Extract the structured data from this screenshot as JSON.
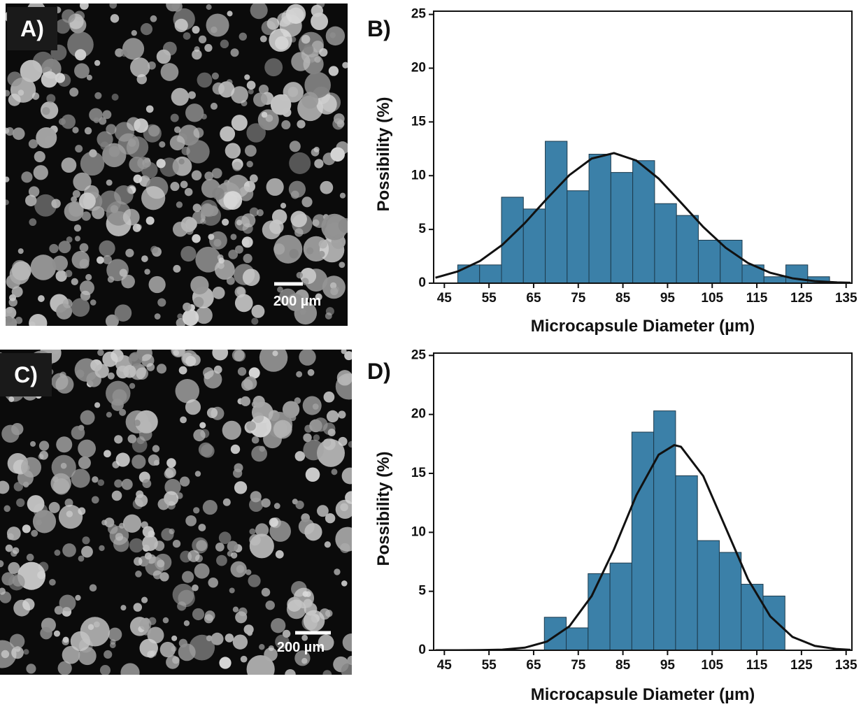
{
  "panels": [
    {
      "label": "A)",
      "scale_bar": "200 µm"
    },
    {
      "label": "C)",
      "scale_bar": "200 µm"
    }
  ],
  "chart_data": [
    {
      "type": "histogram",
      "panel_label": "B)",
      "xlabel": "Microcapsule Diameter (µm)",
      "ylabel": "Possibility (%)",
      "bins": [
        48,
        52.9,
        57.8,
        62.7,
        67.6,
        72.5,
        77.4,
        82.3,
        87.2,
        92.1,
        97,
        101.9,
        106.8,
        111.7,
        116.6,
        121.5,
        126.4,
        131.3
      ],
      "values": [
        1.7,
        1.7,
        8,
        6.9,
        13.2,
        8.6,
        12,
        10.3,
        11.4,
        7.4,
        6.3,
        4,
        4,
        1.7,
        0.6,
        1.7,
        0.6
      ],
      "color": "#3b80a8",
      "fit_curve": {
        "color": "#111111",
        "x": [
          43,
          48,
          53,
          58,
          63,
          68,
          73,
          78,
          83,
          88,
          93,
          98,
          103,
          108,
          113,
          118,
          123,
          128,
          133,
          136
        ],
        "values": [
          0.51,
          1.09,
          2.07,
          3.57,
          5.58,
          7.87,
          10.05,
          11.59,
          12.1,
          11.41,
          9.73,
          7.5,
          5.23,
          3.3,
          1.88,
          0.97,
          0.45,
          0.19,
          0.07,
          0.04
        ]
      },
      "xlim": [
        42.6,
        136.3
      ],
      "ylim": [
        0,
        25.3
      ],
      "xticks": [
        45,
        55,
        65,
        75,
        85,
        95,
        105,
        115,
        125,
        135
      ],
      "yticks": [
        0,
        5,
        10,
        15,
        20,
        25
      ]
    },
    {
      "type": "histogram",
      "panel_label": "D)",
      "xlabel": "Microcapsule Diameter (µm)",
      "ylabel": "Possibility (%)",
      "bins": [
        67.4,
        72.3,
        77.2,
        82.1,
        87,
        91.9,
        96.8,
        101.7,
        106.6,
        111.5,
        116.4,
        121.3
      ],
      "values": [
        2.8,
        1.9,
        6.5,
        7.4,
        18.5,
        20.3,
        14.8,
        9.3,
        8.3,
        5.6,
        4.6
      ],
      "color": "#3b80a8",
      "fit_curve": {
        "color": "#111111",
        "x": [
          43,
          48,
          53,
          58,
          63,
          68,
          73,
          78,
          83,
          88,
          93,
          96.5,
          98,
          103,
          108,
          113,
          118,
          123,
          128,
          133,
          136
        ],
        "values": [
          0,
          0.0019,
          0.011,
          0.054,
          0.22,
          0.74,
          2.03,
          4.6,
          8.56,
          13.14,
          16.58,
          17.4,
          17.26,
          14.77,
          10.41,
          6.04,
          2.88,
          1.13,
          0.37,
          0.1,
          0.04
        ]
      },
      "xlim": [
        42.6,
        136.3
      ],
      "ylim": [
        0,
        25.2
      ],
      "xticks": [
        45,
        55,
        65,
        75,
        85,
        95,
        105,
        115,
        125,
        135
      ],
      "yticks": [
        0,
        5,
        10,
        15,
        20,
        25
      ]
    }
  ]
}
